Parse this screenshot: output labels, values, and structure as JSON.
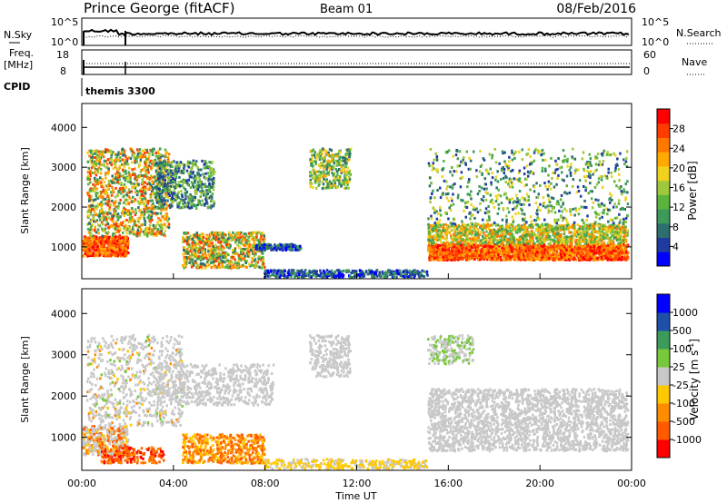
{
  "header": {
    "station": "Prince George (fitACF)",
    "beam": "Beam 01",
    "date": "08/Feb/2016"
  },
  "summary": {
    "nsky_label": "N.Sky",
    "nsky_ticks": [
      "10^5",
      "10^0"
    ],
    "nsearch_label": "N.Search",
    "nsearch_ticks": [
      "10^5",
      "10^0"
    ],
    "freq_label": "Freq.",
    "freq_unit": "[MHz]",
    "freq_ticks": [
      "18",
      "8"
    ],
    "nave_label": "Nave",
    "nave_ticks": [
      "60",
      "0"
    ],
    "cpid_label": "CPID",
    "cpid_value": "themis 3300"
  },
  "chart_data": [
    {
      "type": "heatmap",
      "name": "power",
      "ylabel": "Slant Range [km]",
      "ylim": [
        200,
        4600
      ],
      "yticks": [
        "4000",
        "3000",
        "2000",
        "1000"
      ],
      "xlim": [
        "00:00",
        "24:00"
      ],
      "colorbar": {
        "label": "Power [dB]",
        "ticks": [
          "28",
          "24",
          "20",
          "16",
          "12",
          "8",
          "4"
        ],
        "colors": [
          "#0000ff",
          "#1e3ca0",
          "#2d6e6e",
          "#3c9a5a",
          "#5ab43c",
          "#a0c83c",
          "#f0d21e",
          "#ffaa00",
          "#ff7800",
          "#ff3c00",
          "#ff0000"
        ]
      }
    },
    {
      "type": "heatmap",
      "name": "velocity",
      "ylabel": "Slant Range [km]",
      "ylim": [
        200,
        4600
      ],
      "yticks": [
        "4000",
        "3000",
        "2000",
        "1000"
      ],
      "xlim": [
        "00:00",
        "24:00"
      ],
      "colorbar": {
        "label": "Velocity [m s",
        "label_sup": "-1",
        "label_end": "]",
        "ticks": [
          "1000",
          "500",
          "100",
          "25",
          "-25",
          "-100",
          "-500",
          "-1000"
        ],
        "colors": [
          "#ff0000",
          "#ff5a00",
          "#ff8c00",
          "#ffc800",
          "#c8c8c8",
          "#78c83c",
          "#3c9a5a",
          "#1e50aa",
          "#0000ff"
        ]
      }
    }
  ],
  "xaxis": {
    "label": "Time UT",
    "ticks": [
      "00:00",
      "04:00",
      "08:00",
      "12:00",
      "16:00",
      "20:00",
      "00:00"
    ]
  }
}
